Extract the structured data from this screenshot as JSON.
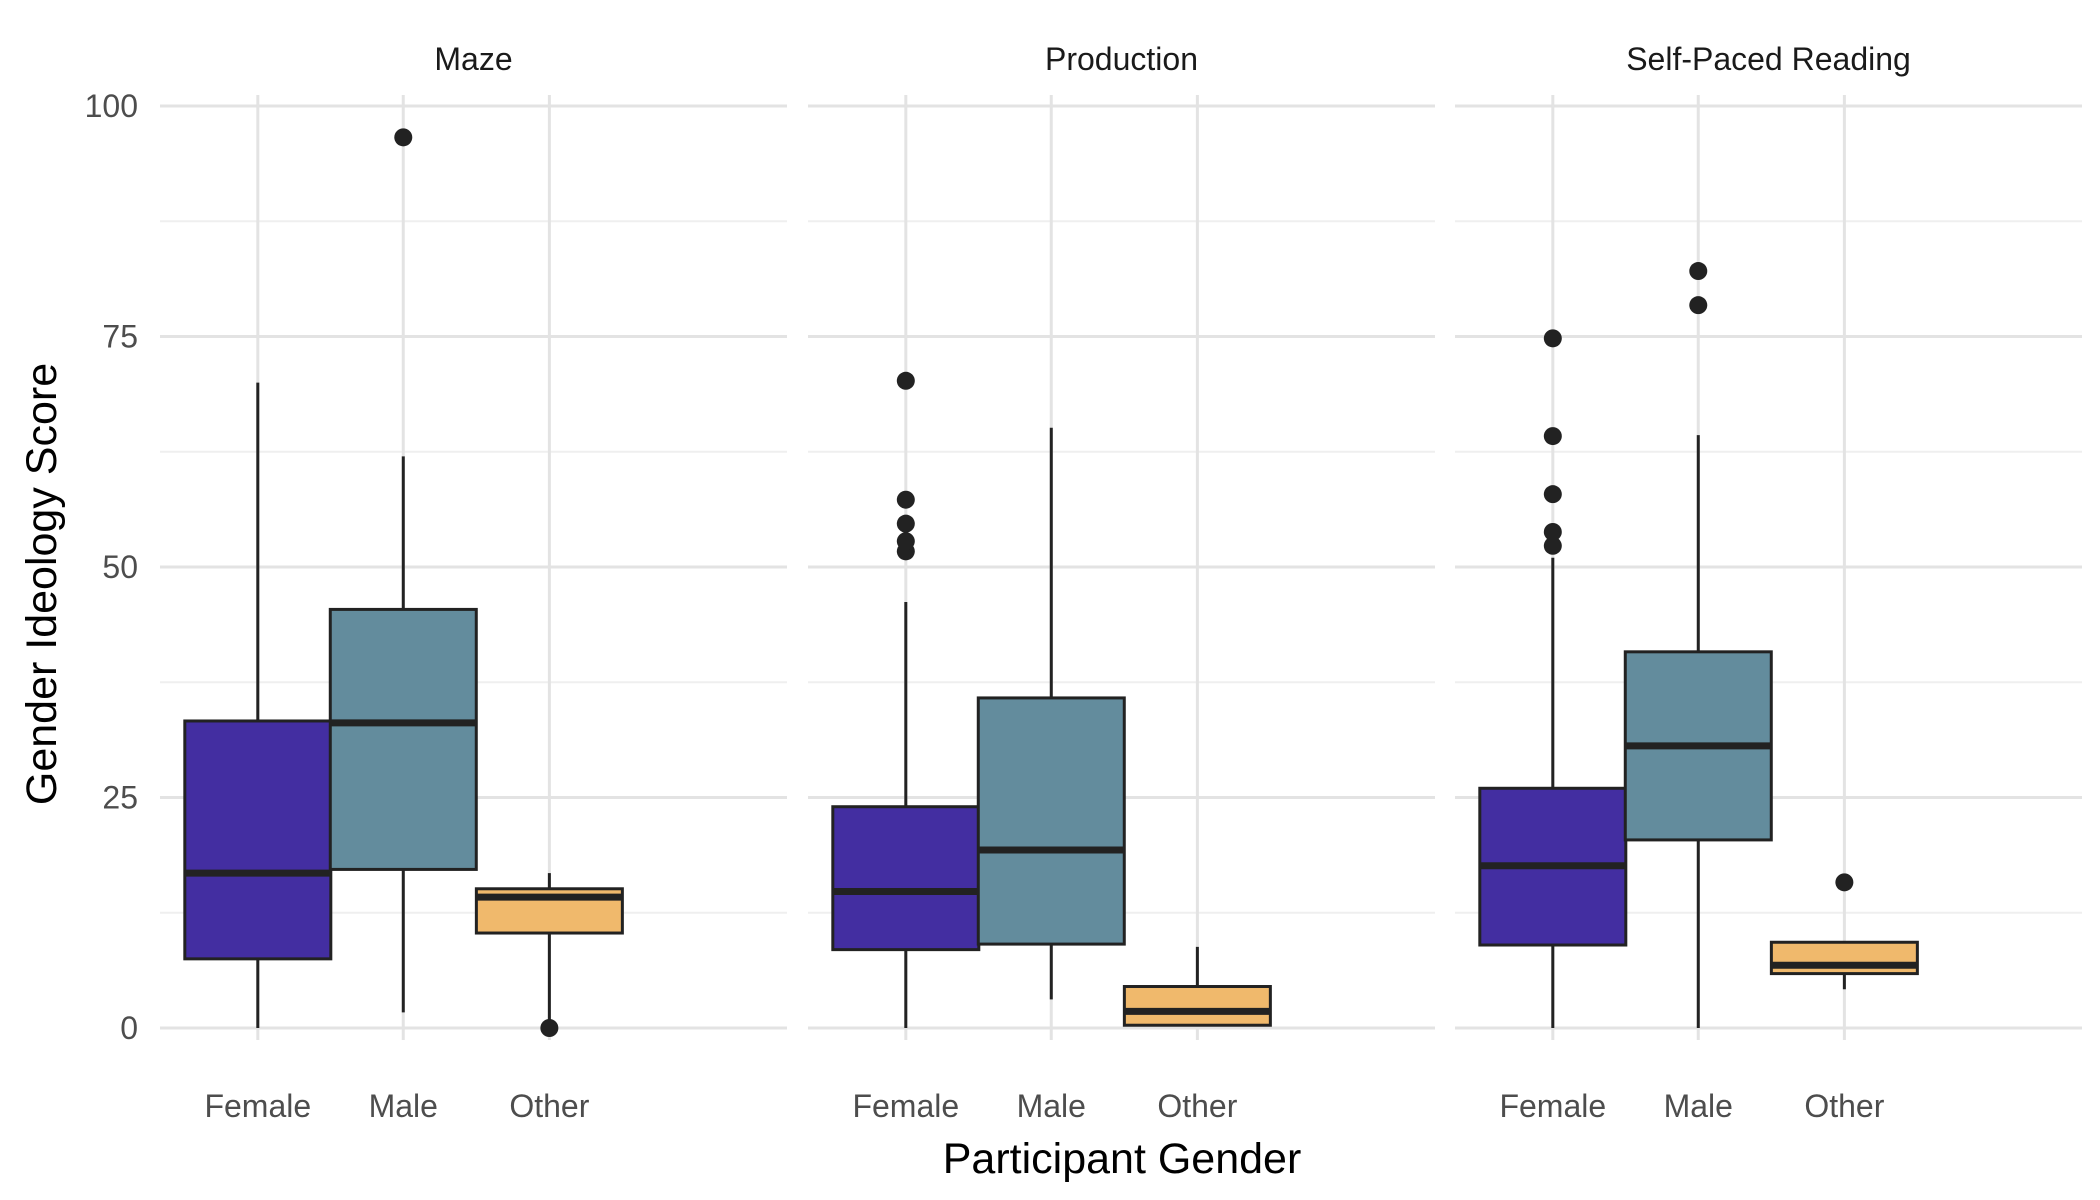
{
  "chart_data": {
    "type": "boxplot",
    "xlabel": "Participant Gender",
    "ylabel": "Gender Ideology Score",
    "ylim": [
      0,
      100
    ],
    "yticks": [
      0,
      25,
      50,
      75,
      100
    ],
    "categories": [
      "Female",
      "Male",
      "Other"
    ],
    "colors": {
      "Female": "#432ea1",
      "Male": "#638c9d",
      "Other": "#f0b96c"
    },
    "grid": true,
    "facets": [
      {
        "title": "Maze",
        "boxes": [
          {
            "category": "Female",
            "min": 0,
            "q1": 7.5,
            "median": 16.8,
            "q3": 33.3,
            "max": 70,
            "outliers": []
          },
          {
            "category": "Male",
            "min": 1.7,
            "q1": 17.2,
            "median": 33.1,
            "q3": 45.4,
            "max": 62,
            "outliers": [
              96.6
            ]
          },
          {
            "category": "Other",
            "min": 0,
            "q1": 10.3,
            "median": 14.2,
            "q3": 15.1,
            "max": 16.8,
            "outliers": [
              0
            ]
          }
        ]
      },
      {
        "title": "Production",
        "boxes": [
          {
            "category": "Female",
            "min": 0,
            "q1": 8.5,
            "median": 14.8,
            "q3": 24,
            "max": 46.2,
            "outliers": [
              51.7,
              52.8,
              54.7,
              57.3,
              70.2
            ]
          },
          {
            "category": "Male",
            "min": 3.1,
            "q1": 9.1,
            "median": 19.3,
            "q3": 35.8,
            "max": 65.1,
            "outliers": []
          },
          {
            "category": "Other",
            "min": 0.3,
            "q1": 0.3,
            "median": 1.8,
            "q3": 4.5,
            "max": 8.8,
            "outliers": []
          }
        ]
      },
      {
        "title": "Self-Paced Reading",
        "boxes": [
          {
            "category": "Female",
            "min": 0,
            "q1": 9,
            "median": 17.6,
            "q3": 26,
            "max": 51,
            "outliers": [
              52.3,
              53.8,
              57.9,
              64.2,
              74.8
            ]
          },
          {
            "category": "Male",
            "min": 0,
            "q1": 20.4,
            "median": 30.6,
            "q3": 40.8,
            "max": 64.3,
            "outliers": [
              78.4,
              82.1
            ]
          },
          {
            "category": "Other",
            "min": 4.2,
            "q1": 5.9,
            "median": 6.8,
            "q3": 9.3,
            "max": 9.3,
            "outliers": [
              15.8
            ]
          }
        ]
      }
    ]
  }
}
